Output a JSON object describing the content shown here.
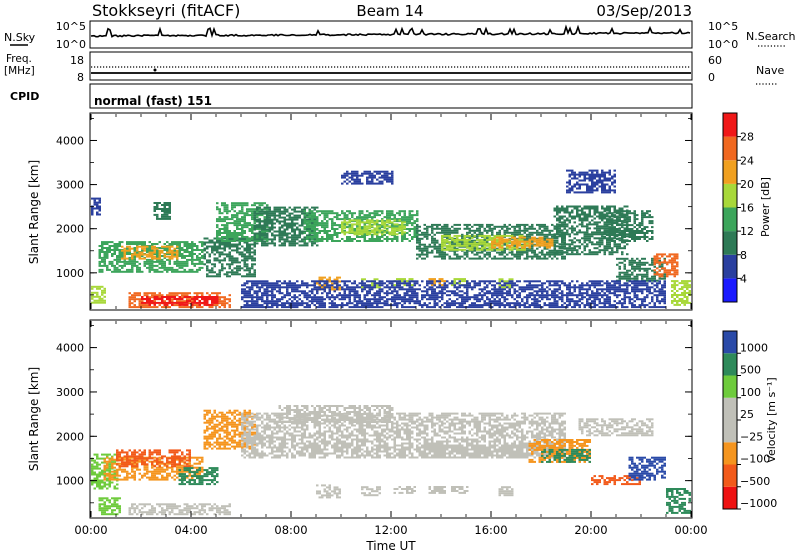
{
  "header": {
    "site": "Stokkseyri (fitACF)",
    "beam": "Beam 14",
    "date": "03/Sep/2013"
  },
  "strip_labels": {
    "nsky": "N.Sky",
    "nsky_ticks": [
      "10^5",
      "10^0"
    ],
    "nsearch": "N.Search",
    "nsearch_ticks": [
      "10^5",
      "10^0"
    ],
    "freq_line1": "Freq.",
    "freq_line2": "[MHz]",
    "freq_ticks": [
      "18",
      "8"
    ],
    "nave": "Nave",
    "nave_ticks": [
      "60",
      "0"
    ],
    "cpid": "CPID",
    "cpid_text": "normal (fast) 151"
  },
  "colors": {
    "power": [
      "#1a1aff",
      "#2a3f9f",
      "#2e7a56",
      "#3ca55b",
      "#a8d83a",
      "#f0a020",
      "#f06820",
      "#f01818"
    ],
    "velocity": [
      "#ee1111",
      "#f25a1a",
      "#f5951f",
      "#c0c0b8",
      "#c0c0b8",
      "#6ecb3c",
      "#2e8a5a",
      "#2a4aa8"
    ],
    "ground_scatter": "#c0c0b8"
  },
  "chart_data": [
    {
      "type": "heatmap",
      "name": "power",
      "xlabel": "Time UT",
      "ylabel": "Slant Range [km]",
      "x_ticks": [
        "00:00",
        "04:00",
        "08:00",
        "12:00",
        "16:00",
        "20:00",
        "00:00"
      ],
      "xlim_hours": [
        0,
        24
      ],
      "y_ticks": [
        "1000",
        "2000",
        "3000",
        "4000"
      ],
      "ylim_km": [
        180,
        4600
      ],
      "colorbar": {
        "label": "Power [dB]",
        "ticks": [
          "4",
          "8",
          "12",
          "16",
          "20",
          "24",
          "28"
        ],
        "range": [
          0,
          32
        ]
      },
      "regions": [
        {
          "t0": 0.0,
          "t1": 0.6,
          "r0": 300,
          "r1": 700,
          "v": 18
        },
        {
          "t0": 0.0,
          "t1": 0.4,
          "r0": 2300,
          "r1": 2700,
          "v": 6
        },
        {
          "t0": 0.3,
          "t1": 4.5,
          "r0": 1000,
          "r1": 1700,
          "v": 14
        },
        {
          "t0": 1.2,
          "t1": 3.5,
          "r0": 1300,
          "r1": 1600,
          "v": 20
        },
        {
          "t0": 1.5,
          "t1": 5.5,
          "r0": 200,
          "r1": 550,
          "v": 26
        },
        {
          "t0": 2.0,
          "t1": 5.0,
          "r0": 250,
          "r1": 450,
          "v": 30
        },
        {
          "t0": 2.5,
          "t1": 3.2,
          "r0": 2200,
          "r1": 2600,
          "v": 9
        },
        {
          "t0": 4.5,
          "t1": 6.5,
          "r0": 900,
          "r1": 1800,
          "v": 9
        },
        {
          "t0": 5.0,
          "t1": 7.0,
          "r0": 1700,
          "r1": 2600,
          "v": 14
        },
        {
          "t0": 6.5,
          "t1": 9.0,
          "r0": 1600,
          "r1": 2500,
          "v": 11
        },
        {
          "t0": 8.5,
          "t1": 13.0,
          "r0": 1700,
          "r1": 2400,
          "v": 13
        },
        {
          "t0": 10.0,
          "t1": 12.5,
          "r0": 1850,
          "r1": 2200,
          "v": 18
        },
        {
          "t0": 13.0,
          "t1": 19.0,
          "r0": 1300,
          "r1": 2100,
          "v": 11
        },
        {
          "t0": 14.0,
          "t1": 17.5,
          "r0": 1500,
          "r1": 1850,
          "v": 17
        },
        {
          "t0": 16.0,
          "t1": 18.5,
          "r0": 1550,
          "r1": 1800,
          "v": 20
        },
        {
          "t0": 18.5,
          "t1": 21.5,
          "r0": 1400,
          "r1": 2500,
          "v": 10
        },
        {
          "t0": 19.0,
          "t1": 21.0,
          "r0": 2800,
          "r1": 3300,
          "v": 6
        },
        {
          "t0": 20.5,
          "t1": 22.5,
          "r0": 1700,
          "r1": 2400,
          "v": 8
        },
        {
          "t0": 21.0,
          "t1": 23.0,
          "r0": 800,
          "r1": 1300,
          "v": 10
        },
        {
          "t0": 22.5,
          "t1": 23.5,
          "r0": 900,
          "r1": 1400,
          "v": 24
        },
        {
          "t0": 23.2,
          "t1": 24.0,
          "r0": 250,
          "r1": 800,
          "v": 18
        },
        {
          "t0": 9.0,
          "t1": 9.9,
          "r0": 600,
          "r1": 900,
          "v": 22
        },
        {
          "t0": 10.8,
          "t1": 11.5,
          "r0": 650,
          "r1": 850,
          "v": 18
        },
        {
          "t0": 12.1,
          "t1": 12.9,
          "r0": 700,
          "r1": 850,
          "v": 17
        },
        {
          "t0": 13.5,
          "t1": 14.1,
          "r0": 700,
          "r1": 850,
          "v": 20
        },
        {
          "t0": 14.4,
          "t1": 15.0,
          "r0": 700,
          "r1": 850,
          "v": 17
        },
        {
          "t0": 16.3,
          "t1": 16.9,
          "r0": 650,
          "r1": 850,
          "v": 18
        },
        {
          "t0": 6.0,
          "t1": 23.0,
          "r0": 200,
          "r1": 800,
          "v": 5
        },
        {
          "t0": 10.0,
          "t1": 12.0,
          "r0": 3000,
          "r1": 3300,
          "v": 5
        }
      ]
    },
    {
      "type": "heatmap",
      "name": "velocity",
      "xlabel": "Time UT",
      "ylabel": "Slant Range [km]",
      "x_ticks": [
        "00:00",
        "04:00",
        "08:00",
        "12:00",
        "16:00",
        "20:00",
        "00:00"
      ],
      "xlim_hours": [
        0,
        24
      ],
      "y_ticks": [
        "1000",
        "2000",
        "3000",
        "4000"
      ],
      "ylim_km": [
        180,
        4600
      ],
      "colorbar": {
        "label": "Velocity [m s⁻¹]",
        "ticks": [
          "1000",
          "500",
          "100",
          "25",
          "−25",
          "−100",
          "−500",
          "−1000"
        ]
      },
      "regions": [
        {
          "t0": 0.0,
          "t1": 1.0,
          "r0": 800,
          "r1": 1600,
          "v": 5
        },
        {
          "t0": 0.5,
          "t1": 4.5,
          "r0": 1000,
          "r1": 1500,
          "v": 2
        },
        {
          "t0": 1.0,
          "t1": 4.0,
          "r0": 1300,
          "r1": 1700,
          "v": 1
        },
        {
          "t0": 3.5,
          "t1": 5.0,
          "r0": 900,
          "r1": 1300,
          "v": 6
        },
        {
          "t0": 4.5,
          "t1": 6.5,
          "r0": 1700,
          "r1": 2600,
          "v": 2
        },
        {
          "t0": 1.5,
          "t1": 5.5,
          "r0": 220,
          "r1": 450,
          "v": 3
        },
        {
          "t0": 0.3,
          "t1": 1.2,
          "r0": 220,
          "r1": 600,
          "v": 5
        },
        {
          "t0": 6.0,
          "t1": 19.0,
          "r0": 1500,
          "r1": 2500,
          "v": 3
        },
        {
          "t0": 7.5,
          "t1": 12.0,
          "r0": 2300,
          "r1": 2700,
          "v": 3
        },
        {
          "t0": 13.5,
          "t1": 17.5,
          "r0": 1500,
          "r1": 1800,
          "v": 4
        },
        {
          "t0": 17.5,
          "t1": 20.0,
          "r0": 1400,
          "r1": 1900,
          "v": 2
        },
        {
          "t0": 18.0,
          "t1": 20.0,
          "r0": 1400,
          "r1": 1700,
          "v": 6
        },
        {
          "t0": 19.5,
          "t1": 22.5,
          "r0": 2000,
          "r1": 2400,
          "v": 3
        },
        {
          "t0": 20.0,
          "t1": 22.0,
          "r0": 900,
          "r1": 1100,
          "v": 1
        },
        {
          "t0": 21.5,
          "t1": 23.0,
          "r0": 1000,
          "r1": 1500,
          "v": 7
        },
        {
          "t0": 23.0,
          "t1": 24.0,
          "r0": 250,
          "r1": 800,
          "v": 6
        },
        {
          "t0": 9.0,
          "t1": 9.9,
          "r0": 600,
          "r1": 900,
          "v": 3
        },
        {
          "t0": 10.8,
          "t1": 11.5,
          "r0": 650,
          "r1": 850,
          "v": 3
        },
        {
          "t0": 12.1,
          "t1": 12.9,
          "r0": 700,
          "r1": 850,
          "v": 3
        },
        {
          "t0": 13.5,
          "t1": 14.1,
          "r0": 700,
          "r1": 850,
          "v": 3
        },
        {
          "t0": 14.4,
          "t1": 15.0,
          "r0": 700,
          "r1": 850,
          "v": 3
        },
        {
          "t0": 16.3,
          "t1": 16.9,
          "r0": 650,
          "r1": 850,
          "v": 3
        }
      ]
    }
  ]
}
